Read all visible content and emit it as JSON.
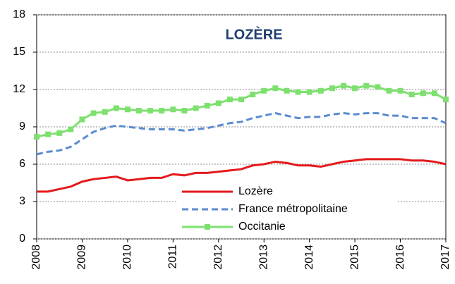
{
  "chart_data": {
    "type": "line",
    "title": "LOZÈRE",
    "x": [
      2008,
      2008.25,
      2008.5,
      2008.75,
      2009,
      2009.25,
      2009.5,
      2009.75,
      2010,
      2010.25,
      2010.5,
      2010.75,
      2011,
      2011.25,
      2011.5,
      2011.75,
      2012,
      2012.25,
      2012.5,
      2012.75,
      2013,
      2013.25,
      2013.5,
      2013.75,
      2014,
      2014.25,
      2014.5,
      2014.75,
      2015,
      2015.25,
      2015.5,
      2015.75,
      2016,
      2016.25,
      2016.5,
      2016.75,
      2017
    ],
    "series": [
      {
        "name": "Lozère",
        "color": "#e31a1c",
        "style": "solid",
        "marker": false,
        "values": [
          3.8,
          3.8,
          4.0,
          4.2,
          4.6,
          4.8,
          4.9,
          5.0,
          4.7,
          4.8,
          4.9,
          4.9,
          5.2,
          5.1,
          5.3,
          5.3,
          5.4,
          5.5,
          5.6,
          5.9,
          6.0,
          6.2,
          6.1,
          5.9,
          5.9,
          5.8,
          6.0,
          6.2,
          6.3,
          6.4,
          6.4,
          6.4,
          6.4,
          6.3,
          6.3,
          6.2,
          6.0
        ]
      },
      {
        "name": "France métropolitaine",
        "color": "#5b8bd0",
        "style": "dashed",
        "marker": false,
        "values": [
          6.8,
          7.0,
          7.1,
          7.4,
          8.0,
          8.6,
          8.9,
          9.1,
          9.0,
          8.9,
          8.8,
          8.8,
          8.8,
          8.7,
          8.8,
          8.9,
          9.1,
          9.3,
          9.4,
          9.7,
          9.9,
          10.1,
          9.9,
          9.7,
          9.8,
          9.8,
          10.0,
          10.1,
          10.0,
          10.1,
          10.1,
          9.9,
          9.9,
          9.7,
          9.7,
          9.7,
          9.3
        ]
      },
      {
        "name": "Occitanie",
        "color": "#7ee06f",
        "style": "solid",
        "marker": true,
        "values": [
          8.2,
          8.4,
          8.5,
          8.8,
          9.6,
          10.1,
          10.2,
          10.5,
          10.4,
          10.3,
          10.3,
          10.3,
          10.4,
          10.3,
          10.5,
          10.7,
          10.9,
          11.2,
          11.2,
          11.6,
          11.9,
          12.1,
          11.9,
          11.8,
          11.8,
          11.9,
          12.1,
          12.3,
          12.1,
          12.3,
          12.2,
          11.9,
          11.9,
          11.6,
          11.7,
          11.7,
          11.2
        ]
      }
    ],
    "xlim": [
      2008,
      2017
    ],
    "xticks": [
      2008,
      2009,
      2010,
      2011,
      2012,
      2013,
      2014,
      2015,
      2016,
      2017
    ],
    "ylim": [
      0,
      18
    ],
    "yticks": [
      0,
      3,
      6,
      9,
      12,
      15,
      18
    ],
    "grid": true,
    "legend": "bottom"
  }
}
